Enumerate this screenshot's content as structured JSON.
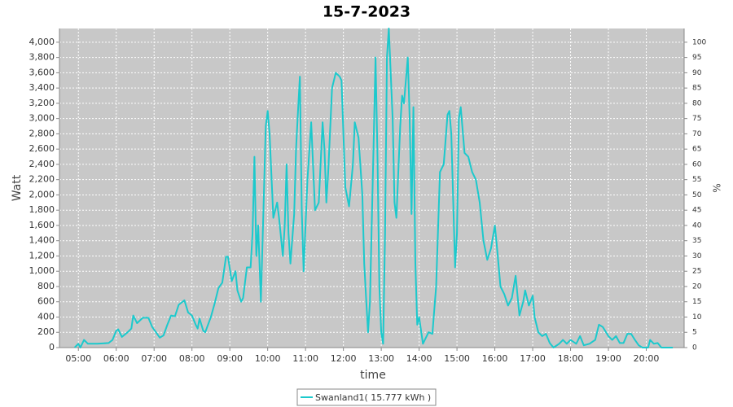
{
  "chart_data": {
    "type": "line",
    "title": "15-7-2023",
    "x_label": "time",
    "y_label": "Watt",
    "y2_label": "%",
    "x": [
      4.9,
      5.0,
      5.05,
      5.1,
      5.15,
      5.25,
      5.5,
      5.8,
      5.9,
      6.0,
      6.05,
      6.15,
      6.3,
      6.4,
      6.45,
      6.55,
      6.7,
      6.85,
      6.95,
      7.05,
      7.15,
      7.25,
      7.35,
      7.45,
      7.55,
      7.65,
      7.8,
      7.9,
      8.0,
      8.1,
      8.15,
      8.2,
      8.3,
      8.35,
      8.5,
      8.6,
      8.7,
      8.8,
      8.9,
      8.95,
      9.05,
      9.15,
      9.2,
      9.3,
      9.35,
      9.45,
      9.55,
      9.6,
      9.65,
      9.7,
      9.75,
      9.82,
      9.9,
      9.95,
      10.0,
      10.05,
      10.15,
      10.25,
      10.3,
      10.4,
      10.45,
      10.5,
      10.55,
      10.6,
      10.7,
      10.75,
      10.8,
      10.85,
      10.9,
      10.95,
      11.05,
      11.15,
      11.25,
      11.35,
      11.45,
      11.5,
      11.55,
      11.6,
      11.7,
      11.8,
      11.9,
      11.95,
      12.05,
      12.15,
      12.25,
      12.3,
      12.4,
      12.5,
      12.55,
      12.6,
      12.65,
      12.7,
      12.8,
      12.85,
      12.9,
      12.95,
      13.0,
      13.05,
      13.1,
      13.15,
      13.2,
      13.3,
      13.35,
      13.4,
      13.5,
      13.55,
      13.6,
      13.7,
      13.75,
      13.8,
      13.85,
      13.9,
      13.95,
      14.0,
      14.1,
      14.15,
      14.25,
      14.35,
      14.45,
      14.55,
      14.65,
      14.75,
      14.8,
      14.85,
      14.95,
      15.0,
      15.05,
      15.1,
      15.2,
      15.3,
      15.4,
      15.5,
      15.6,
      15.7,
      15.8,
      15.9,
      16.0,
      16.05,
      16.15,
      16.25,
      16.35,
      16.45,
      16.55,
      16.65,
      16.75,
      16.8,
      16.9,
      17.0,
      17.05,
      17.15,
      17.25,
      17.35,
      17.45,
      17.55,
      17.7,
      17.8,
      17.9,
      18.0,
      18.15,
      18.25,
      18.35,
      18.5,
      18.65,
      18.75,
      18.85,
      19.0,
      19.1,
      19.2,
      19.3,
      19.4,
      19.5,
      19.6,
      19.7,
      19.8,
      19.9,
      20.05,
      20.1,
      20.2,
      20.3,
      20.4,
      20.7
    ],
    "series": [
      {
        "name": "Swanland1( 15.777 kWh )",
        "color": "#1cc9cc",
        "values": [
          0,
          50,
          0,
          50,
          100,
          50,
          50,
          60,
          100,
          220,
          240,
          140,
          200,
          250,
          420,
          320,
          390,
          390,
          270,
          200,
          130,
          160,
          300,
          420,
          410,
          560,
          620,
          460,
          420,
          300,
          250,
          380,
          220,
          200,
          400,
          580,
          780,
          850,
          1190,
          1190,
          870,
          1000,
          750,
          600,
          650,
          1050,
          1050,
          1500,
          2500,
          1200,
          1600,
          600,
          2000,
          2900,
          3100,
          2800,
          1700,
          1900,
          1700,
          1200,
          1600,
          2400,
          1500,
          1100,
          1750,
          2600,
          3100,
          3550,
          1800,
          1000,
          2200,
          2950,
          1800,
          1900,
          2950,
          2600,
          1900,
          2300,
          3400,
          3600,
          3550,
          3500,
          2100,
          1850,
          2400,
          2950,
          2750,
          2000,
          1100,
          650,
          200,
          600,
          2700,
          3800,
          2500,
          800,
          200,
          50,
          1500,
          3800,
          4180,
          3000,
          1900,
          1700,
          2900,
          3300,
          3200,
          3800,
          3000,
          1750,
          3150,
          1100,
          300,
          400,
          50,
          100,
          200,
          180,
          800,
          2300,
          2400,
          3050,
          3100,
          2800,
          1050,
          1500,
          3000,
          3150,
          2550,
          2500,
          2300,
          2200,
          1900,
          1400,
          1150,
          1300,
          1600,
          1350,
          800,
          700,
          550,
          650,
          940,
          420,
          600,
          750,
          550,
          680,
          400,
          200,
          150,
          180,
          60,
          0,
          50,
          100,
          50,
          100,
          50,
          150,
          30,
          50,
          100,
          300,
          270,
          150,
          100,
          150,
          60,
          60,
          180,
          180,
          100,
          30,
          0,
          0,
          100,
          50,
          60,
          0,
          0
        ]
      }
    ],
    "xlim": [
      4.5,
      21.0
    ],
    "xticks": [
      {
        "value": 5,
        "label": "05:00"
      },
      {
        "value": 6,
        "label": "06:00"
      },
      {
        "value": 7,
        "label": "07:00"
      },
      {
        "value": 8,
        "label": "08:00"
      },
      {
        "value": 9,
        "label": "09:00"
      },
      {
        "value": 10,
        "label": "10:00"
      },
      {
        "value": 11,
        "label": "11:00"
      },
      {
        "value": 12,
        "label": "12:00"
      },
      {
        "value": 13,
        "label": "13:00"
      },
      {
        "value": 14,
        "label": "14:00"
      },
      {
        "value": 15,
        "label": "15:00"
      },
      {
        "value": 16,
        "label": "16:00"
      },
      {
        "value": 17,
        "label": "17:00"
      },
      {
        "value": 18,
        "label": "18:00"
      },
      {
        "value": 19,
        "label": "19:00"
      },
      {
        "value": 20,
        "label": "20:00"
      }
    ],
    "ylim": [
      0,
      4180
    ],
    "yticks": [
      0,
      200,
      400,
      600,
      800,
      {
        "value": 1000,
        "label": "1,000"
      },
      {
        "value": 1200,
        "label": "1,200"
      },
      {
        "value": 1400,
        "label": "1,400"
      },
      {
        "value": 1600,
        "label": "1,600"
      },
      {
        "value": 1800,
        "label": "1,800"
      },
      {
        "value": 2000,
        "label": "2,000"
      },
      {
        "value": 2200,
        "label": "2,200"
      },
      {
        "value": 2400,
        "label": "2,400"
      },
      {
        "value": 2600,
        "label": "2,600"
      },
      {
        "value": 2800,
        "label": "2,800"
      },
      {
        "value": 3000,
        "label": "3,000"
      },
      {
        "value": 3200,
        "label": "3,200"
      },
      {
        "value": 3400,
        "label": "3,400"
      },
      {
        "value": 3600,
        "label": "3,600"
      },
      {
        "value": 3800,
        "label": "3,800"
      },
      {
        "value": 4000,
        "label": "4,000"
      }
    ],
    "y2lim": [
      0,
      104.5
    ],
    "y2ticks": [
      0,
      5,
      10,
      15,
      20,
      25,
      30,
      35,
      40,
      45,
      50,
      55,
      60,
      65,
      70,
      75,
      80,
      85,
      90,
      95,
      100
    ],
    "grid": true,
    "legend": "bottom"
  }
}
